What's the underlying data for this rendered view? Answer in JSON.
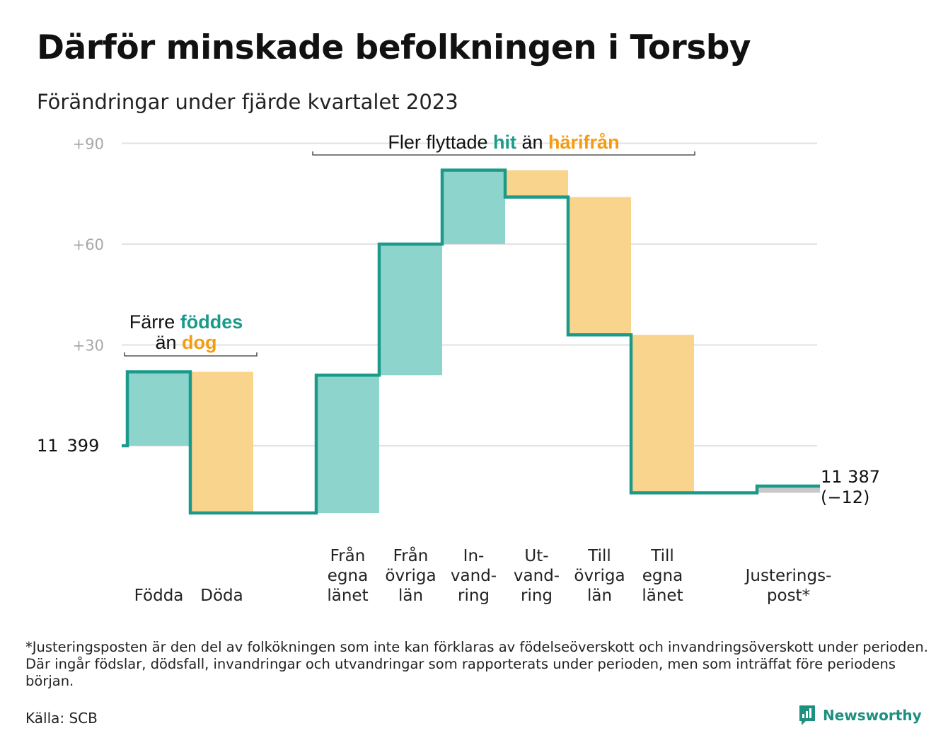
{
  "title": "Därför minskade befolkningen i Torsby",
  "subtitle": "Förändringar under fjärde kvartalet 2023",
  "colors": {
    "increase": "#8dd5cc",
    "decrease": "#f9d48c",
    "line": "#1b9a8a",
    "adjust": "#c8c8c8",
    "grid": "#e2e2e2"
  },
  "chart_data": {
    "type": "waterfall",
    "start_value": 11399,
    "start_label": "11 399",
    "end_value": 11387,
    "end_label": "11 387",
    "end_change_label": "(−12)",
    "yticks": [
      {
        "value": 30,
        "label": "+30"
      },
      {
        "value": 60,
        "label": "+60"
      },
      {
        "value": 90,
        "label": "+90"
      }
    ],
    "ylim": [
      -20,
      93
    ],
    "steps": [
      {
        "key": "fodda",
        "label_lines": [
          "Födda"
        ],
        "change": 22,
        "kind": "increase"
      },
      {
        "key": "doda",
        "label_lines": [
          "Döda"
        ],
        "change": -42,
        "kind": "decrease"
      },
      {
        "key": "gap",
        "label_lines": [],
        "change": 0,
        "kind": "gap"
      },
      {
        "key": "fran-egna-lanet",
        "label_lines": [
          "Från",
          "egna",
          "länet"
        ],
        "change": 41,
        "kind": "increase"
      },
      {
        "key": "fran-ovriga-lan",
        "label_lines": [
          "Från",
          "övriga",
          "län"
        ],
        "change": 39,
        "kind": "increase"
      },
      {
        "key": "invandring",
        "label_lines": [
          "In-",
          "vand-",
          "ring"
        ],
        "change": 22,
        "kind": "increase"
      },
      {
        "key": "utvandring",
        "label_lines": [
          "Ut-",
          "vand-",
          "ring"
        ],
        "change": -8,
        "kind": "decrease"
      },
      {
        "key": "till-ovriga-lan",
        "label_lines": [
          "Till",
          "övriga",
          "län"
        ],
        "change": -41,
        "kind": "decrease"
      },
      {
        "key": "till-egna-lanet",
        "label_lines": [
          "Till",
          "egna",
          "länet"
        ],
        "change": -47,
        "kind": "decrease"
      },
      {
        "key": "gap2",
        "label_lines": [],
        "change": 0,
        "kind": "gap"
      },
      {
        "key": "justeringspost",
        "label_lines": [
          "Justerings-",
          "post*"
        ],
        "change": 2,
        "kind": "adjust"
      }
    ],
    "annotations": [
      {
        "key": "births",
        "lines": [
          [
            {
              "text": "Färre ",
              "style": "normal"
            },
            {
              "text": "föddes",
              "style": "teal"
            }
          ],
          [
            {
              "text": "än ",
              "style": "normal"
            },
            {
              "text": "dog",
              "style": "orange"
            }
          ]
        ]
      },
      {
        "key": "moves",
        "lines": [
          [
            {
              "text": "Fler flyttade ",
              "style": "normal"
            },
            {
              "text": "hit",
              "style": "teal"
            },
            {
              "text": " än ",
              "style": "normal"
            },
            {
              "text": "härifrån",
              "style": "orange"
            }
          ]
        ]
      }
    ]
  },
  "footnote": "*Justeringsposten är den del av folkökningen som inte kan förklaras av födelseöverskott och invandringsöverskott under perioden. Där ingår födslar, dödsfall, invandringar och utvandringar som rapporterats under perioden, men som inträffat före periodens början.",
  "source": "Källa: SCB",
  "brand": {
    "name": "Newsworthy",
    "icon": "bar-chart-speech-bubble-icon"
  }
}
